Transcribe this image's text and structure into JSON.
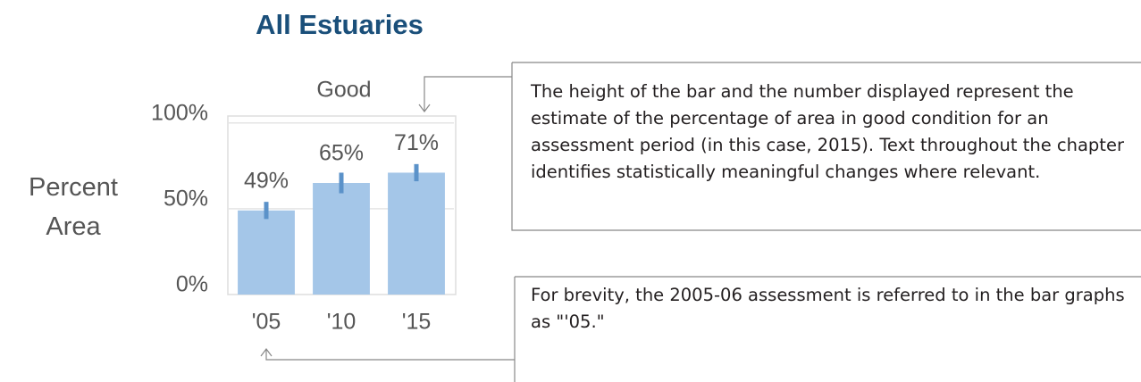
{
  "chart_data": {
    "type": "bar",
    "title": "All Estuaries",
    "subtitle": "Good",
    "y_label": "Percent Area",
    "categories": [
      "'05",
      "'10",
      "'15"
    ],
    "values": [
      49,
      65,
      71
    ],
    "value_labels": [
      "49%",
      "65%",
      "71%"
    ],
    "errors": [
      5,
      6,
      5
    ],
    "color": "#a4c6e8",
    "error_color": "#5b92c9",
    "ylim": [
      0,
      104
    ],
    "yticks": [
      {
        "value": 0,
        "label": "0%"
      },
      {
        "value": 50,
        "label": "50%"
      },
      {
        "value": 100,
        "label": "100%"
      }
    ],
    "grid": true,
    "annotations": [
      "The height of the bar and the number displayed represent the estimate of the percentage of area in good condition for an assessment period (in this case, 2015). Text throughout the chapter identifies statistically meaningful changes where relevant.",
      "For brevity, the 2005-06 assessment is referred to in the bar graphs as \"'05.\""
    ]
  }
}
